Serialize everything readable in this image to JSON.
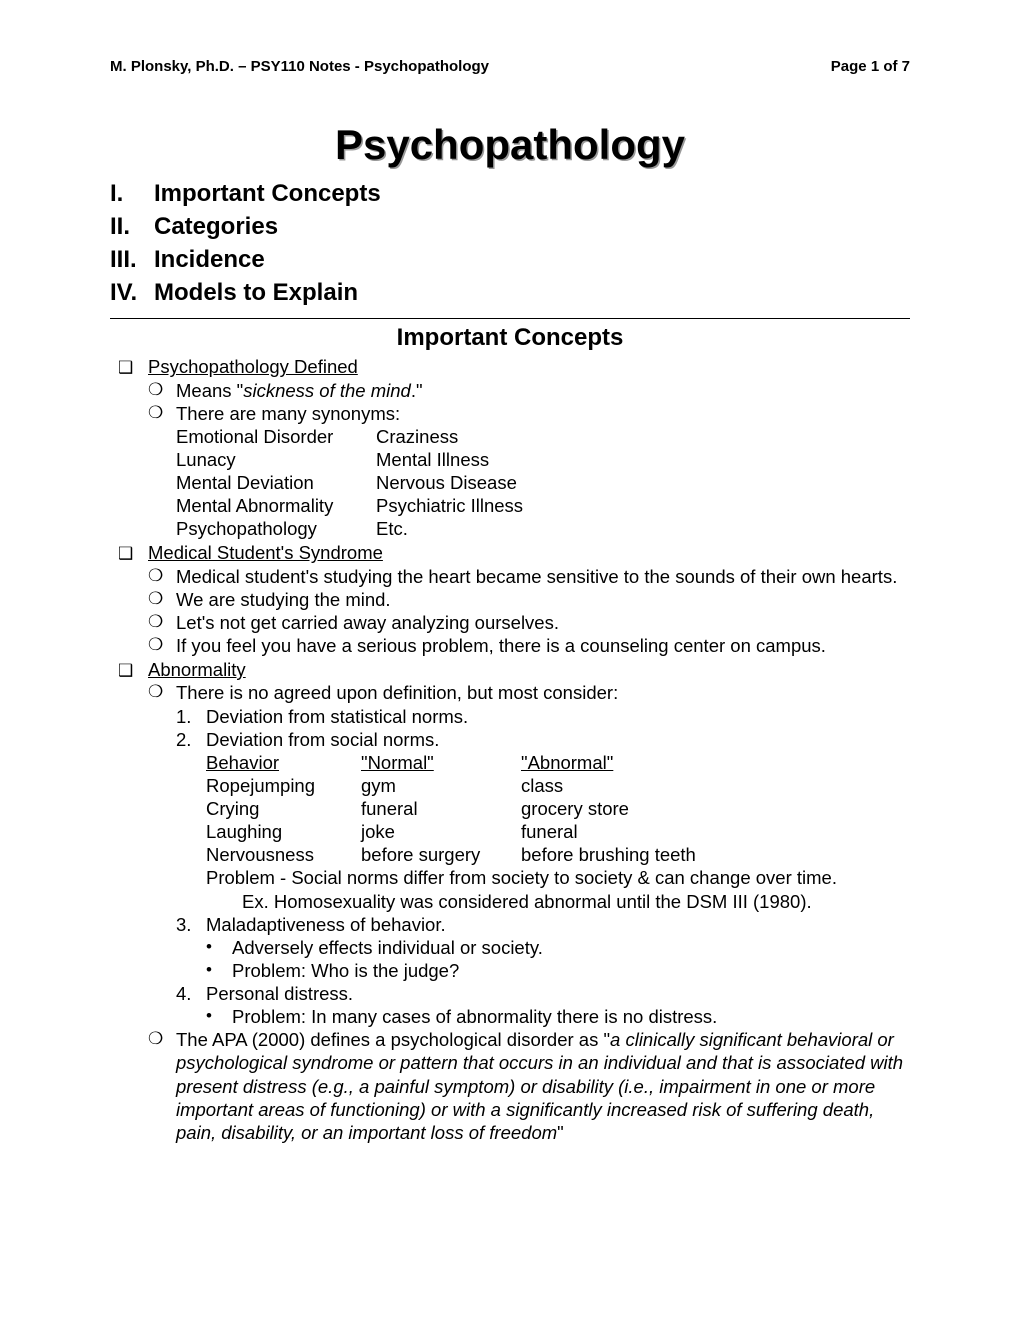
{
  "header": {
    "left": "M. Plonsky, Ph.D. – PSY110 Notes - Psychopathology",
    "right": "Page 1 of 7"
  },
  "title": "Psychopathology",
  "toc": [
    {
      "num": "I.",
      "label": "Important Concepts"
    },
    {
      "num": "II.",
      "label": "Categories"
    },
    {
      "num": "III.",
      "label": "Incidence"
    },
    {
      "num": "IV.",
      "label": "Models to Explain"
    }
  ],
  "section_title": "Important Concepts",
  "icons": {
    "square": "❑",
    "circle": "❍",
    "bullet": "•"
  },
  "psychopath_defined": {
    "heading": "Psychopathology Defined",
    "means_pre": "Means \"",
    "means_italic": "sickness of the mind",
    "means_post": ".\"",
    "synonyms_label": "There are many synonyms:",
    "rows": [
      {
        "c1": "Emotional Disorder",
        "c2": "Craziness"
      },
      {
        "c1": "Lunacy",
        "c2": "Mental Illness"
      },
      {
        "c1": "Mental Deviation",
        "c2": "Nervous Disease"
      },
      {
        "c1": "Mental Abnormality",
        "c2": "Psychiatric Illness"
      },
      {
        "c1": "Psychopathology",
        "c2": "Etc."
      }
    ]
  },
  "medical_syndrome": {
    "heading": "Medical Student's Syndrome",
    "items": [
      "Medical student's studying the heart became sensitive to the sounds of their own hearts.",
      "We are studying the mind.",
      "Let's not get carried away analyzing ourselves.",
      "If you feel you have a serious problem, there is a counseling center on campus."
    ]
  },
  "abnormality": {
    "heading": "Abnormality",
    "intro": "There is no agreed upon definition, but most consider:",
    "n1": "Deviation from statistical norms.",
    "n2": "Deviation from social norms.",
    "norm_headers": {
      "c1": "Behavior",
      "c2": "\"Normal\"",
      "c3": "\"Abnormal\""
    },
    "norm_rows": [
      {
        "c1": "Ropejumping",
        "c2": "gym",
        "c3": "class"
      },
      {
        "c1": "Crying",
        "c2": "funeral",
        "c3": "grocery store"
      },
      {
        "c1": "Laughing",
        "c2": "joke",
        "c3": "funeral"
      },
      {
        "c1": "Nervousness",
        "c2": "before surgery",
        "c3": "before brushing teeth"
      }
    ],
    "problem_social": "Problem - Social norms differ from society to society & can change over time.",
    "ex_social": "Ex.  Homosexuality was considered abnormal until the DSM III (1980).",
    "n3": "Maladaptiveness of behavior.",
    "n3_b1": "Adversely effects individual or society.",
    "n3_b2": "Problem:  Who is the judge?",
    "n4": "Personal distress.",
    "n4_b1": "Problem:  In many cases of abnormality there is no distress.",
    "apa_pre": "The APA (2000) defines a psychological disorder as \"",
    "apa_italic": "a clinically significant behavioral or psychological syndrome or pattern that occurs in an individual and that is associated with present distress (e.g., a painful symptom) or disability (i.e., impairment in one or more important areas of functioning) or with a significantly increased risk of suffering death, pain, disability, or an important loss of freedom",
    "apa_post": "\""
  }
}
